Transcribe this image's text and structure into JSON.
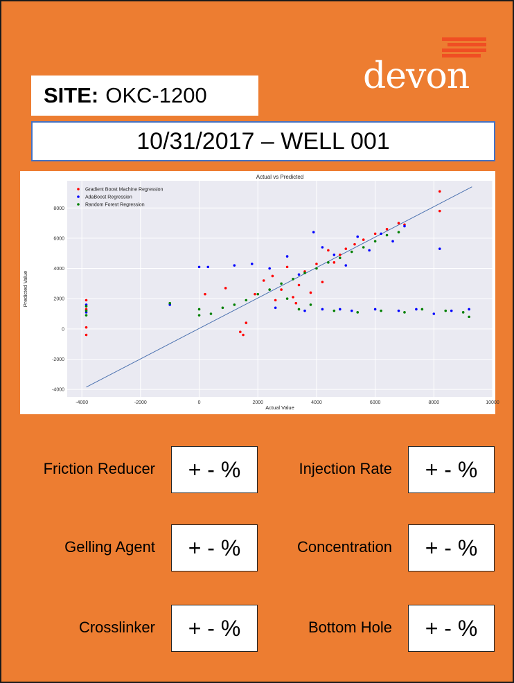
{
  "site": {
    "label": "SITE:",
    "value": "OKC-1200"
  },
  "header": {
    "date_well": "10/31/2017 – WELL 001"
  },
  "logo": {
    "text": "devon",
    "bar_color": "#F04E23"
  },
  "colors": {
    "background": "#ED7D31",
    "plot_bg": "#EAEAF2",
    "accent_border": "#4472C4"
  },
  "chart_data": {
    "type": "scatter",
    "title": "Actual vs Predicted",
    "xlabel": "Actual Value",
    "ylabel": "Predicted Value",
    "xlim": [
      -4500,
      10000
    ],
    "ylim": [
      -4500,
      9800
    ],
    "x_ticks": [
      -4000,
      -2000,
      0,
      2000,
      4000,
      6000,
      8000,
      10000
    ],
    "y_ticks": [
      -4000,
      -2000,
      0,
      2000,
      4000,
      6000,
      8000
    ],
    "grid": true,
    "legend_position": "top-left",
    "reference_line": {
      "x": [
        -3850,
        9300
      ],
      "y": [
        -3850,
        9400
      ],
      "color": "#4C72B0"
    },
    "series": [
      {
        "name": "Gradient Boost Machine Regression",
        "color": "#FF0000",
        "points": [
          [
            -3850,
            1900
          ],
          [
            -3850,
            1300
          ],
          [
            -3850,
            100
          ],
          [
            -3850,
            -400
          ],
          [
            8200,
            9100
          ],
          [
            8200,
            7800
          ],
          [
            200,
            2300
          ],
          [
            900,
            2700
          ],
          [
            1400,
            -200
          ],
          [
            1500,
            -400
          ],
          [
            1600,
            400
          ],
          [
            2200,
            3200
          ],
          [
            2500,
            3500
          ],
          [
            2800,
            2600
          ],
          [
            3000,
            4100
          ],
          [
            3200,
            2100
          ],
          [
            3400,
            2900
          ],
          [
            3600,
            3800
          ],
          [
            3800,
            2400
          ],
          [
            4000,
            4300
          ],
          [
            4200,
            3100
          ],
          [
            4400,
            5200
          ],
          [
            4600,
            4400
          ],
          [
            4800,
            4900
          ],
          [
            5000,
            5300
          ],
          [
            5300,
            5600
          ],
          [
            5600,
            5900
          ],
          [
            6000,
            6300
          ],
          [
            6400,
            6600
          ],
          [
            6800,
            7000
          ],
          [
            7000,
            6900
          ],
          [
            3300,
            1700
          ],
          [
            2600,
            1900
          ],
          [
            1900,
            2300
          ]
        ]
      },
      {
        "name": "AdaBoost Regression",
        "color": "#0000FF",
        "points": [
          [
            -3850,
            1600
          ],
          [
            -3850,
            1100
          ],
          [
            -1000,
            1600
          ],
          [
            0,
            4100
          ],
          [
            300,
            4100
          ],
          [
            1200,
            4200
          ],
          [
            1800,
            4300
          ],
          [
            2400,
            4000
          ],
          [
            3000,
            4800
          ],
          [
            3400,
            3600
          ],
          [
            3900,
            6400
          ],
          [
            4200,
            5400
          ],
          [
            4600,
            4900
          ],
          [
            5000,
            4200
          ],
          [
            5400,
            6100
          ],
          [
            5800,
            5200
          ],
          [
            6200,
            6300
          ],
          [
            6600,
            5800
          ],
          [
            7000,
            6800
          ],
          [
            8200,
            5300
          ],
          [
            4800,
            1300
          ],
          [
            5200,
            1200
          ],
          [
            6000,
            1300
          ],
          [
            6800,
            1200
          ],
          [
            7400,
            1300
          ],
          [
            8000,
            1000
          ],
          [
            8600,
            1200
          ],
          [
            9200,
            1300
          ],
          [
            2600,
            1400
          ],
          [
            3600,
            1200
          ],
          [
            4200,
            1300
          ]
        ]
      },
      {
        "name": "Random Forest Regression",
        "color": "#008000",
        "points": [
          [
            -3850,
            1500
          ],
          [
            -3850,
            1200
          ],
          [
            -3850,
            900
          ],
          [
            -1000,
            1700
          ],
          [
            0,
            1300
          ],
          [
            0,
            900
          ],
          [
            400,
            1000
          ],
          [
            800,
            1400
          ],
          [
            1200,
            1600
          ],
          [
            1600,
            1900
          ],
          [
            2000,
            2300
          ],
          [
            2400,
            2600
          ],
          [
            2800,
            3000
          ],
          [
            3200,
            3300
          ],
          [
            3600,
            3700
          ],
          [
            4000,
            4000
          ],
          [
            4400,
            4400
          ],
          [
            4800,
            4700
          ],
          [
            5200,
            5100
          ],
          [
            5600,
            5400
          ],
          [
            6000,
            5800
          ],
          [
            6400,
            6200
          ],
          [
            6800,
            6400
          ],
          [
            4600,
            1200
          ],
          [
            5400,
            1100
          ],
          [
            6200,
            1200
          ],
          [
            7000,
            1100
          ],
          [
            7600,
            1300
          ],
          [
            8400,
            1200
          ],
          [
            9000,
            1100
          ],
          [
            9200,
            800
          ],
          [
            3400,
            1300
          ],
          [
            3800,
            1600
          ],
          [
            3000,
            2000
          ]
        ]
      }
    ]
  },
  "metrics": [
    {
      "label": "Friction Reducer",
      "value": "+ - %"
    },
    {
      "label": "Injection Rate",
      "value": "+ - %"
    },
    {
      "label": "Gelling Agent",
      "value": "+ - %"
    },
    {
      "label": "Concentration",
      "value": "+ - %"
    },
    {
      "label": "Crosslinker",
      "value": "+ - %"
    },
    {
      "label": "Bottom Hole",
      "value": "+ - %"
    }
  ]
}
